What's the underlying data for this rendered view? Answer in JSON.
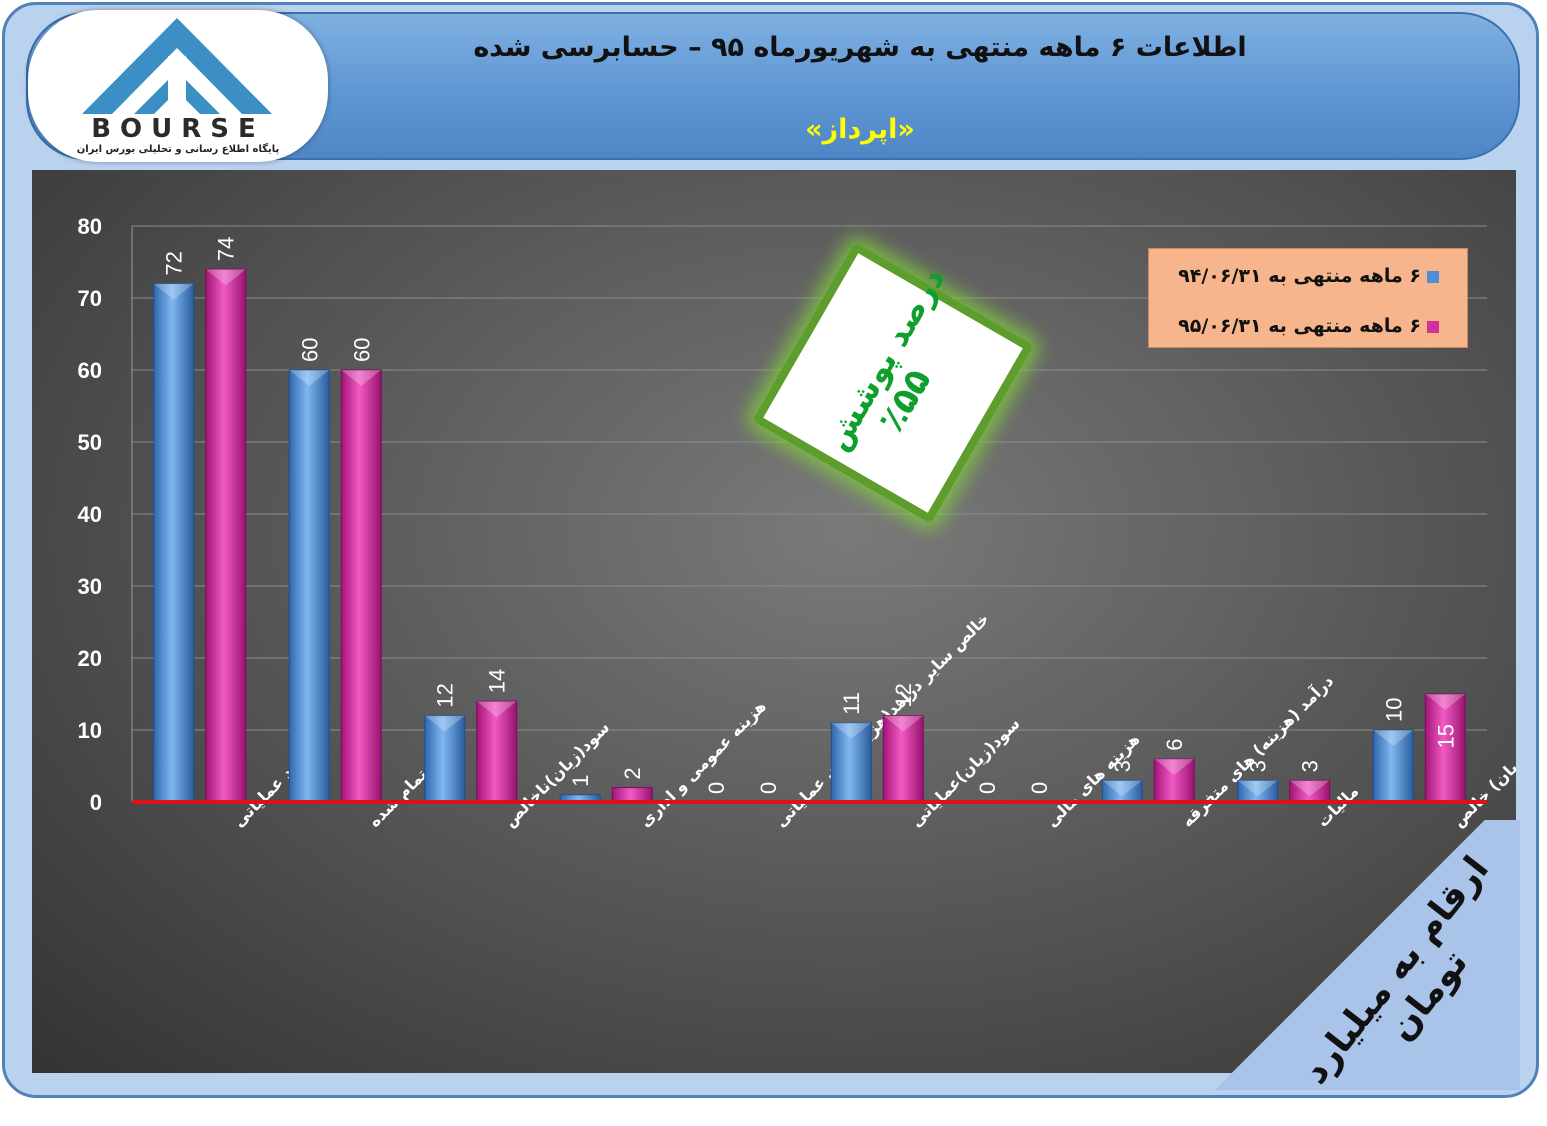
{
  "header": {
    "title": "اطلاعات ۶  ماهه منتهی به شهریورماه ۹۵ – حسابرسی شده",
    "subtitle": "«اپرداز»"
  },
  "logo": {
    "wordmark": "BOURSE",
    "tagline": "پایگاه اطلاع رسانی و تحلیلی بورس ایران"
  },
  "coverage_badge": {
    "label": "درصد پوشش",
    "value": "٪۵۵"
  },
  "unit_banner": "ارقام به میلیارد تومان",
  "colors": {
    "series1": "#4f8fd8",
    "series2": "#d0309a",
    "baseline": "#e0101a",
    "legend_bg": "#f7b58d",
    "badge_green": "#0e9f2d"
  },
  "chart_data": {
    "type": "bar",
    "ylim": [
      0,
      80
    ],
    "yticks": [
      0,
      10,
      20,
      30,
      40,
      50,
      60,
      70,
      80
    ],
    "grid": true,
    "legend_position": "top-right",
    "categories": [
      "درآمد عملیاتی",
      "بهای تمام شده",
      "سود(زیان)ناخالص",
      "هزینه عمومی و اداری",
      "خالص سایر درامد(هزینه)های عملیاتی",
      "سود(زیان)عملیاتی",
      "هزینه های مالی",
      "درآمد (هزینه) های متفرقه",
      "مالیات",
      "سود(زیان) خالص"
    ],
    "series": [
      {
        "name": "۶ ماهه منتهی به  ۹۴/۰۶/۳۱",
        "values": [
          72,
          60,
          12,
          1,
          0,
          11,
          0,
          3,
          3,
          10
        ]
      },
      {
        "name": "۶ ماهه منتهی به  ۹۵/۰۶/۳۱",
        "values": [
          74,
          60,
          14,
          2,
          0,
          12,
          0,
          6,
          3,
          15
        ]
      }
    ]
  }
}
